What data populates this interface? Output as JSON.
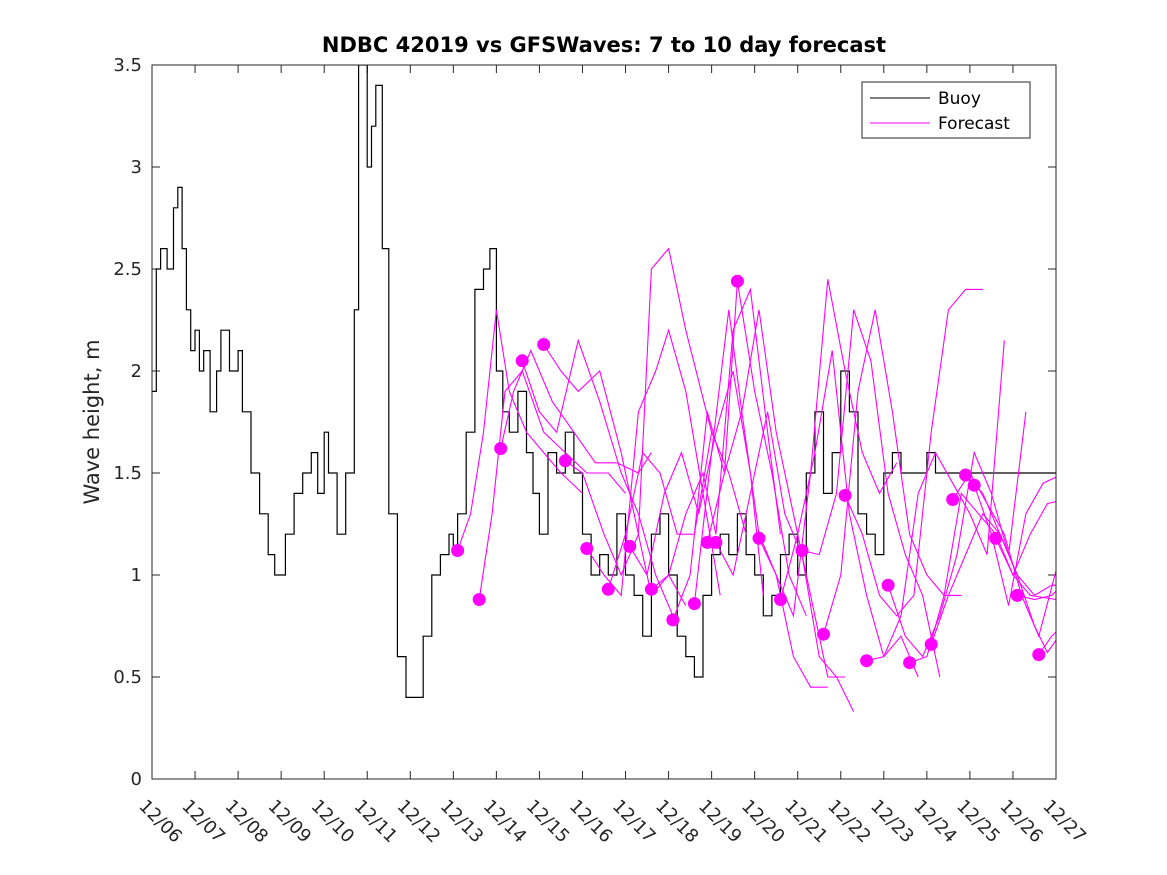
{
  "chart_data": {
    "type": "line",
    "title": "NDBC 42019 vs GFSWaves: 7 to 10 day forecast",
    "xlabel": "",
    "ylabel": "Wave height, m",
    "ylim": [
      0,
      3.5
    ],
    "yticks": [
      "0",
      "0.5",
      "1",
      "1.5",
      "2",
      "2.5",
      "3",
      "3.5"
    ],
    "xlim_days": [
      0,
      21
    ],
    "xticks": [
      "12/06",
      "12/07",
      "12/08",
      "12/09",
      "12/10",
      "12/11",
      "12/12",
      "12/13",
      "12/14",
      "12/15",
      "12/16",
      "12/17",
      "12/18",
      "12/19",
      "12/20",
      "12/21",
      "12/22",
      "12/23",
      "12/24",
      "12/25",
      "12/26",
      "12/27"
    ],
    "legend": {
      "position": "top-right",
      "entries": [
        {
          "name": "Buoy",
          "color": "#000000"
        },
        {
          "name": "Forecast",
          "color": "#ff00ff"
        }
      ]
    },
    "buoy": {
      "name": "Buoy",
      "color": "#000000",
      "x": [
        0,
        0.1,
        0.2,
        0.35,
        0.5,
        0.6,
        0.7,
        0.8,
        0.9,
        1.0,
        1.1,
        1.2,
        1.35,
        1.5,
        1.6,
        1.8,
        2.0,
        2.1,
        2.3,
        2.5,
        2.7,
        2.85,
        3.0,
        3.1,
        3.3,
        3.5,
        3.7,
        3.85,
        4.0,
        4.1,
        4.3,
        4.5,
        4.7,
        4.8,
        5.0,
        5.1,
        5.2,
        5.35,
        5.5,
        5.7,
        5.9,
        6.1,
        6.3,
        6.5,
        6.7,
        6.9,
        7.0,
        7.1,
        7.3,
        7.5,
        7.7,
        7.85,
        8.0,
        8.15,
        8.3,
        8.5,
        8.7,
        8.85,
        9.0,
        9.2,
        9.4,
        9.6,
        9.8,
        10.0,
        10.2,
        10.4,
        10.6,
        10.8,
        11.0,
        11.2,
        11.4,
        11.6,
        11.8,
        12.0,
        12.2,
        12.4,
        12.6,
        12.8,
        13.0,
        13.2,
        13.4,
        13.6,
        13.8,
        14.0,
        14.2,
        14.4,
        14.6,
        14.8,
        15.0,
        15.2,
        15.4,
        15.6,
        15.8,
        16.0,
        16.2,
        16.4,
        16.6,
        16.8,
        17.0,
        17.2,
        17.4,
        17.6,
        17.8,
        18.0,
        18.2,
        18.4,
        18.6,
        18.8,
        19.0,
        19.2,
        19.4,
        19.6,
        19.8,
        20.0,
        20.2,
        20.4,
        20.6,
        20.8,
        21.0
      ],
      "values": [
        1.9,
        2.5,
        2.6,
        2.5,
        2.8,
        2.9,
        2.6,
        2.3,
        2.1,
        2.2,
        2.0,
        2.1,
        1.8,
        2.0,
        2.2,
        2.0,
        2.1,
        1.8,
        1.5,
        1.3,
        1.1,
        1.0,
        1.0,
        1.2,
        1.4,
        1.5,
        1.6,
        1.4,
        1.7,
        1.5,
        1.2,
        1.5,
        2.3,
        3.5,
        3.0,
        3.2,
        3.4,
        2.6,
        1.3,
        0.6,
        0.4,
        0.4,
        0.7,
        1.0,
        1.1,
        1.2,
        1.1,
        1.3,
        1.7,
        2.4,
        2.5,
        2.6,
        2.0,
        1.8,
        1.7,
        1.9,
        1.6,
        1.4,
        1.2,
        1.6,
        1.5,
        1.7,
        1.5,
        1.2,
        1.0,
        1.1,
        1.0,
        1.3,
        1.0,
        0.9,
        0.7,
        1.2,
        1.3,
        1.0,
        0.7,
        0.6,
        0.5,
        0.9,
        1.1,
        1.2,
        1.1,
        1.3,
        1.1,
        1.0,
        0.8,
        0.9,
        1.1,
        1.2,
        1.0,
        1.5,
        1.8,
        1.4,
        1.6,
        2.0,
        1.8,
        1.3,
        1.2,
        1.1,
        1.5,
        1.6,
        1.5,
        1.5,
        1.5,
        1.6,
        1.5,
        1.5,
        1.5,
        1.5,
        1.5,
        1.5,
        1.5,
        1.5,
        1.5,
        1.5,
        1.5,
        1.5,
        1.5,
        1.5,
        1.5
      ],
      "x_clip_end": 21.0
    },
    "forecast_series": [
      {
        "name": "Forecast",
        "x": [
          7.1,
          7.4,
          7.7,
          8.0,
          8.3,
          8.7,
          9.1,
          9.5,
          10.0
        ],
        "values": [
          1.12,
          1.3,
          1.7,
          2.3,
          1.9,
          1.7,
          1.6,
          1.5,
          1.4
        ]
      },
      {
        "name": "Forecast",
        "x": [
          7.6,
          7.9,
          8.2,
          8.6,
          9.1,
          9.6,
          10.1,
          10.6,
          11.0
        ],
        "values": [
          0.88,
          1.3,
          1.9,
          2.0,
          1.7,
          1.6,
          1.5,
          1.5,
          1.4
        ]
      },
      {
        "name": "Forecast",
        "x": [
          8.1,
          8.4,
          8.8,
          9.3,
          9.8,
          10.3,
          10.8,
          11.3,
          11.6
        ],
        "values": [
          1.62,
          1.9,
          2.1,
          1.85,
          1.7,
          1.55,
          1.55,
          1.5,
          1.6
        ]
      },
      {
        "name": "Forecast",
        "x": [
          8.6,
          9.0,
          9.4,
          9.9,
          10.4,
          10.9,
          11.3,
          11.7,
          12.1
        ],
        "values": [
          2.05,
          1.8,
          1.7,
          2.15,
          1.85,
          1.5,
          1.3,
          1.0,
          0.8
        ]
      },
      {
        "name": "Forecast",
        "x": [
          9.1,
          9.5,
          9.9,
          10.4,
          10.9,
          11.3,
          11.6,
          12.0,
          12.4
        ],
        "values": [
          2.13,
          2.0,
          1.9,
          2.0,
          1.6,
          1.2,
          0.9,
          1.0,
          0.85
        ]
      },
      {
        "name": "Forecast",
        "x": [
          9.6,
          10.0,
          10.5,
          10.9,
          11.3,
          11.6,
          12.0,
          12.4,
          13.0
        ],
        "values": [
          1.56,
          1.5,
          1.2,
          1.0,
          1.2,
          2.5,
          2.6,
          2.2,
          1.7
        ]
      },
      {
        "name": "Forecast",
        "x": [
          10.1,
          10.5,
          10.9,
          11.3,
          11.7,
          12.0,
          12.4,
          12.8,
          13.2
        ],
        "values": [
          1.13,
          1.0,
          0.9,
          1.8,
          2.0,
          2.2,
          1.9,
          1.4,
          0.9
        ]
      },
      {
        "name": "Forecast",
        "x": [
          10.6,
          11.0,
          11.4,
          11.8,
          12.2,
          12.6,
          13.0,
          13.4,
          13.8
        ],
        "values": [
          0.93,
          1.2,
          1.6,
          1.5,
          1.2,
          1.2,
          1.7,
          1.5,
          1.2
        ]
      },
      {
        "name": "Forecast",
        "x": [
          11.1,
          11.5,
          11.9,
          12.3,
          12.7,
          13.1,
          13.5,
          13.9,
          14.2
        ],
        "values": [
          1.14,
          1.0,
          1.4,
          1.6,
          1.3,
          1.7,
          2.0,
          1.5,
          0.9
        ]
      },
      {
        "name": "Forecast",
        "x": [
          11.6,
          12.0,
          12.4,
          12.8,
          13.1,
          13.5,
          13.9,
          14.3,
          14.6
        ],
        "values": [
          0.93,
          1.0,
          1.3,
          1.5,
          1.2,
          2.2,
          2.4,
          1.7,
          1.2
        ]
      },
      {
        "name": "Forecast",
        "x": [
          12.1,
          12.5,
          12.9,
          13.3,
          13.6,
          14.0,
          14.4,
          14.8,
          15.2
        ],
        "values": [
          0.78,
          1.0,
          1.8,
          1.5,
          2.44,
          1.9,
          1.5,
          1.0,
          0.8
        ]
      },
      {
        "name": "Forecast",
        "x": [
          12.6,
          13.0,
          13.4,
          13.7,
          14.1,
          14.5,
          14.9,
          15.3,
          15.7
        ],
        "values": [
          0.86,
          1.6,
          2.3,
          1.8,
          1.2,
          1.0,
          0.6,
          0.45,
          0.45
        ]
      },
      {
        "name": "Forecast",
        "x": [
          12.9,
          13.3,
          13.7,
          14.1,
          14.5,
          14.9,
          15.3,
          15.7,
          16.1
        ],
        "values": [
          1.16,
          1.5,
          1.8,
          2.3,
          1.7,
          1.3,
          0.9,
          0.5,
          0.5
        ]
      },
      {
        "name": "Forecast",
        "x": [
          13.1,
          13.5,
          13.9,
          14.3,
          14.7,
          15.1,
          15.5,
          15.9,
          16.3
        ],
        "values": [
          1.16,
          1.0,
          1.4,
          1.8,
          1.3,
          1.1,
          0.6,
          0.5,
          0.33
        ]
      },
      {
        "name": "Forecast",
        "x": [
          14.1,
          14.5,
          14.9,
          15.3,
          15.7,
          16.1,
          16.5,
          16.9,
          17.3
        ],
        "values": [
          1.18,
          1.0,
          0.8,
          1.5,
          2.45,
          2.0,
          1.6,
          1.4,
          1.55
        ]
      },
      {
        "name": "Forecast",
        "x": [
          14.6,
          15.0,
          15.4,
          15.8,
          16.2,
          16.6,
          17.0,
          17.4,
          17.8
        ],
        "values": [
          0.88,
          1.2,
          1.6,
          2.1,
          1.3,
          0.9,
          0.6,
          0.7,
          0.5
        ]
      },
      {
        "name": "Forecast",
        "x": [
          15.1,
          15.5,
          15.9,
          16.3,
          16.7,
          17.1,
          17.5,
          17.9,
          18.3
        ],
        "values": [
          1.12,
          1.1,
          1.4,
          2.3,
          2.05,
          1.4,
          1.1,
          0.9,
          0.5
        ]
      },
      {
        "name": "Forecast",
        "x": [
          15.6,
          16.0,
          16.4,
          16.8,
          17.2,
          17.6,
          18.0,
          18.4,
          18.8
        ],
        "values": [
          0.71,
          1.0,
          1.9,
          2.3,
          1.8,
          1.2,
          1.0,
          0.9,
          0.9
        ]
      },
      {
        "name": "Forecast",
        "x": [
          16.1,
          16.5,
          16.9,
          17.3,
          17.7,
          18.1,
          18.5,
          18.9,
          19.3
        ],
        "values": [
          1.39,
          1.2,
          0.9,
          0.8,
          0.9,
          1.7,
          2.3,
          2.4,
          2.4
        ]
      },
      {
        "name": "Forecast",
        "x": [
          16.6,
          17.0,
          17.4,
          17.8,
          18.2,
          18.6,
          19.0,
          19.4,
          19.8
        ],
        "values": [
          0.58,
          0.6,
          0.8,
          1.4,
          1.6,
          1.45,
          1.3,
          1.1,
          2.15
        ]
      },
      {
        "name": "Forecast",
        "x": [
          17.1,
          17.5,
          17.9,
          18.3,
          18.7,
          19.1,
          19.5,
          19.9,
          20.3
        ],
        "values": [
          0.95,
          0.7,
          0.6,
          0.8,
          1.1,
          1.6,
          1.4,
          1.1,
          1.8
        ]
      },
      {
        "name": "Forecast",
        "x": [
          17.6,
          18.0,
          18.4,
          18.8,
          19.2,
          19.6,
          20.0,
          20.4,
          21.0
        ],
        "values": [
          0.57,
          0.6,
          0.9,
          1.4,
          1.3,
          1.2,
          1.0,
          0.9,
          0.88
        ]
      },
      {
        "name": "Forecast",
        "x": [
          18.1,
          18.5,
          18.9,
          19.3,
          19.7,
          20.1,
          20.5,
          20.9,
          21.0
        ],
        "values": [
          0.66,
          0.9,
          1.1,
          1.3,
          1.2,
          1.0,
          0.9,
          0.95,
          0.95
        ]
      },
      {
        "name": "Forecast",
        "x": [
          18.6,
          19.0,
          19.4,
          19.8,
          20.2,
          20.6,
          21.0
        ],
        "values": [
          1.37,
          1.5,
          1.35,
          1.2,
          0.9,
          0.7,
          1.02
        ]
      },
      {
        "name": "Forecast",
        "x": [
          18.9,
          19.3,
          19.7,
          20.1,
          20.5,
          20.8,
          21.0
        ],
        "values": [
          1.49,
          1.4,
          1.2,
          1.0,
          0.75,
          0.62,
          0.68
        ]
      },
      {
        "name": "Forecast",
        "x": [
          19.1,
          19.5,
          19.9,
          20.3,
          20.7,
          21.0
        ],
        "values": [
          1.44,
          1.2,
          0.85,
          1.3,
          1.45,
          1.48
        ]
      },
      {
        "name": "Forecast",
        "x": [
          19.6,
          20.0,
          20.4,
          20.8,
          21.0
        ],
        "values": [
          1.18,
          1.0,
          1.2,
          1.35,
          1.36
        ]
      },
      {
        "name": "Forecast",
        "x": [
          20.1,
          20.5,
          20.9,
          21.0
        ],
        "values": [
          0.9,
          0.88,
          0.9,
          0.92
        ]
      },
      {
        "name": "Forecast",
        "x": [
          20.6,
          20.9,
          21.0
        ],
        "values": [
          0.61,
          0.7,
          0.72
        ]
      }
    ],
    "forecast_points": {
      "name": "Forecast",
      "color": "#ff00ff",
      "x": [
        7.1,
        7.6,
        8.1,
        8.6,
        9.1,
        9.6,
        10.1,
        10.6,
        11.1,
        11.6,
        12.1,
        12.6,
        12.9,
        13.1,
        13.6,
        14.1,
        14.6,
        15.1,
        15.6,
        16.1,
        16.6,
        17.1,
        17.6,
        18.1,
        18.6,
        18.9,
        19.1,
        19.6,
        20.1,
        20.6
      ],
      "values": [
        1.12,
        0.88,
        1.62,
        2.05,
        2.13,
        1.56,
        1.13,
        0.93,
        1.14,
        0.93,
        0.78,
        0.86,
        1.16,
        1.16,
        2.44,
        1.18,
        0.88,
        1.12,
        0.71,
        1.39,
        0.58,
        0.95,
        0.57,
        0.66,
        1.37,
        1.49,
        1.44,
        1.18,
        0.9,
        0.61
      ]
    }
  }
}
